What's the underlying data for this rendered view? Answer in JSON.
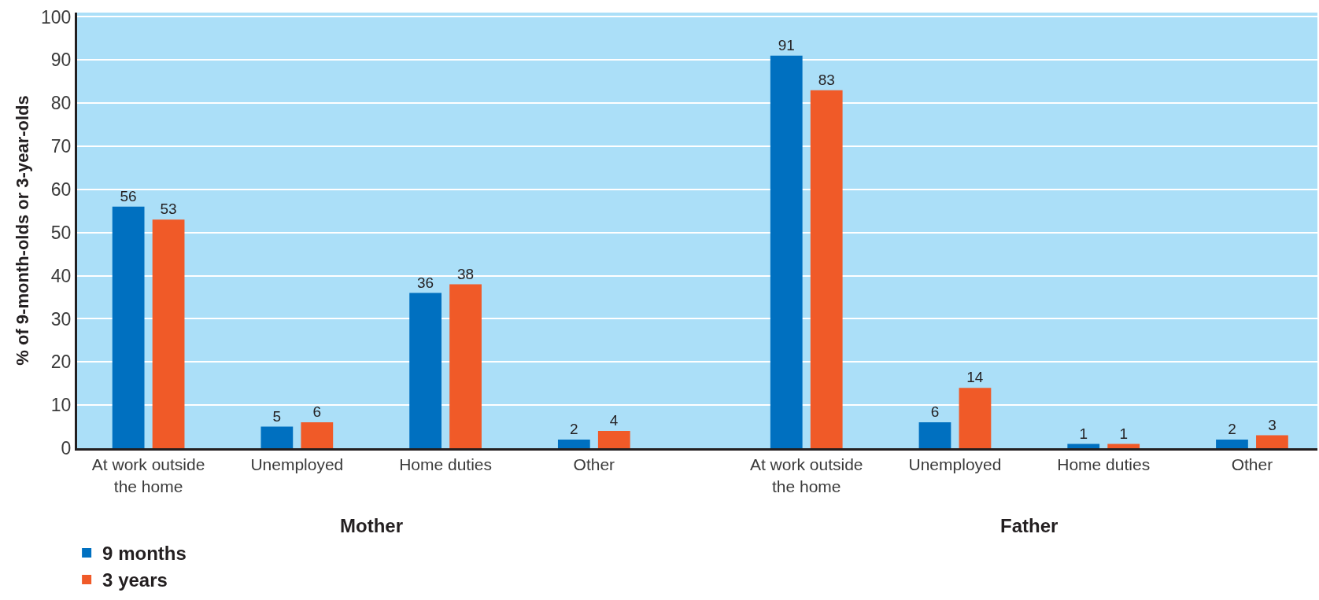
{
  "chart_data": {
    "type": "bar",
    "ylabel": "% of 9-month-olds or 3-year-olds",
    "categories": [
      "At work outside the home",
      "Unemployed",
      "Home duties",
      "Other",
      "At work outside the home",
      "Unemployed",
      "Home duties",
      "Other"
    ],
    "series": [
      {
        "name": "9 months",
        "color": "#0070c0",
        "values": [
          56,
          5,
          36,
          2,
          91,
          6,
          1,
          2
        ]
      },
      {
        "name": "3 years",
        "color": "#f05a28",
        "values": [
          53,
          6,
          38,
          4,
          83,
          14,
          1,
          3
        ]
      }
    ],
    "annotations": [
      "Mother",
      "Father"
    ],
    "ylim": [
      0,
      101
    ],
    "yticks": [
      0,
      10,
      20,
      30,
      40,
      50,
      60,
      70,
      80,
      90,
      100
    ],
    "grid": "y",
    "legend": "bottom left",
    "data_labels": true
  }
}
